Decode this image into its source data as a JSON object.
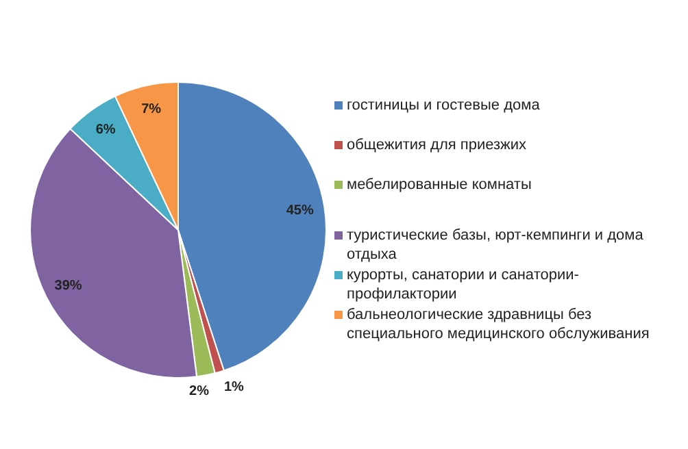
{
  "chart_data": {
    "type": "pie",
    "categories": [
      "гостиницы и гостевые дома",
      "общежития для приезжих",
      "мебелированные комнаты",
      "туристические базы, юрт-кемпинги и дома отдыха",
      "курорты, санатории и санатории-профилактории",
      "бальнеологические здравницы без специального медицинского обслуживания"
    ],
    "values": [
      45,
      1,
      2,
      39,
      6,
      7
    ],
    "value_labels": [
      "45%",
      "1%",
      "2%",
      "39%",
      "6%",
      "7%"
    ],
    "colors": [
      "#4f81bd",
      "#c0504d",
      "#9bbb59",
      "#8064a2",
      "#4bacc6",
      "#f79646"
    ],
    "legend": "right"
  }
}
